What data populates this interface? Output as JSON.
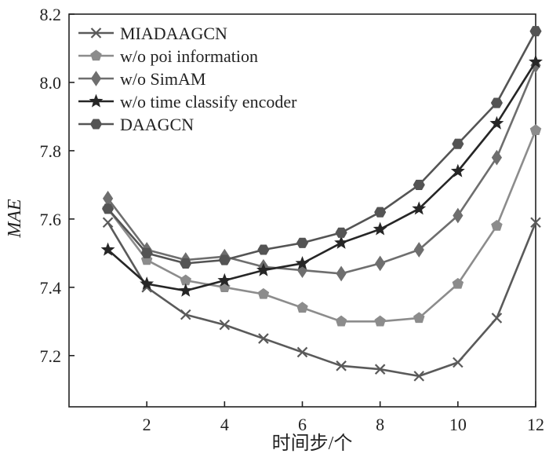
{
  "chart_data": {
    "type": "line",
    "x": [
      1,
      2,
      3,
      4,
      5,
      6,
      7,
      8,
      9,
      10,
      11,
      12
    ],
    "xlabel": "时间步/个",
    "ylabel": "MAE",
    "xlim": [
      0,
      12
    ],
    "ylim": [
      7.05,
      8.2
    ],
    "xticks": [
      2,
      4,
      6,
      8,
      10,
      12
    ],
    "yticks": [
      7.2,
      7.4,
      7.6,
      7.8,
      8.0,
      8.2
    ],
    "ytick_labels": [
      "7.2",
      "7.4",
      "7.6",
      "7.8",
      "8.0",
      "8.2"
    ],
    "grid": false,
    "legend_position": "top-left",
    "series": [
      {
        "name": "MIADAAGCN",
        "marker": "x",
        "color": "#5a5a5a",
        "values": [
          7.59,
          7.4,
          7.32,
          7.29,
          7.25,
          7.21,
          7.17,
          7.16,
          7.14,
          7.18,
          7.31,
          7.59
        ]
      },
      {
        "name": "w/o poi information",
        "marker": "pentagon",
        "color": "#8c8c8c",
        "values": [
          7.63,
          7.48,
          7.42,
          7.4,
          7.38,
          7.34,
          7.3,
          7.3,
          7.31,
          7.41,
          7.58,
          7.86
        ]
      },
      {
        "name": "w/o SimAM",
        "marker": "diamond",
        "color": "#6e6e6e",
        "values": [
          7.66,
          7.51,
          7.48,
          7.49,
          7.46,
          7.45,
          7.44,
          7.47,
          7.51,
          7.61,
          7.78,
          8.05
        ]
      },
      {
        "name": "w/o time classify encoder",
        "marker": "star",
        "color": "#262626",
        "values": [
          7.51,
          7.41,
          7.39,
          7.42,
          7.45,
          7.47,
          7.53,
          7.57,
          7.63,
          7.74,
          7.88,
          8.06
        ]
      },
      {
        "name": "DAAGCN",
        "marker": "hexagon",
        "color": "#545454",
        "values": [
          7.63,
          7.5,
          7.47,
          7.48,
          7.51,
          7.53,
          7.56,
          7.62,
          7.7,
          7.82,
          7.94,
          8.15
        ]
      }
    ]
  }
}
